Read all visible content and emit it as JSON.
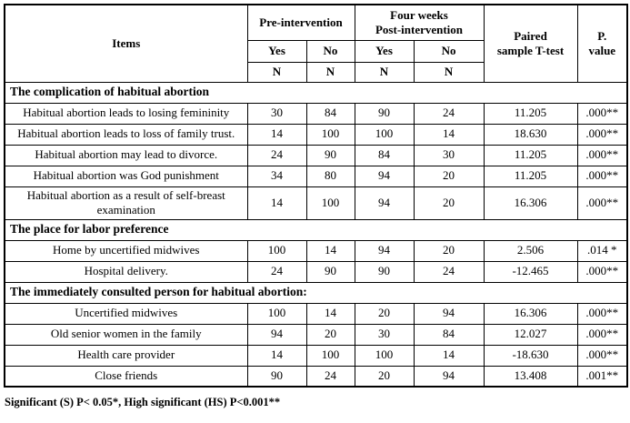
{
  "table": {
    "header": {
      "items": "Items",
      "pre_intervention": "Pre-intervention",
      "post_intervention": "Four weeks\nPost-intervention",
      "yes": "Yes",
      "no": "No",
      "n": "N",
      "paired_t_test": "Paired\nsample T-test",
      "p_value": "P.\nvalue"
    },
    "sections": [
      {
        "title": "The complication of habitual abortion",
        "rows": [
          {
            "item": "Habitual abortion leads to losing femininity",
            "pre_yes": "30",
            "pre_no": "84",
            "post_yes": "90",
            "post_no": "24",
            "t": "11.205",
            "p": ".000**"
          },
          {
            "item": "Habitual abortion leads to loss of family trust.",
            "pre_yes": "14",
            "pre_no": "100",
            "post_yes": "100",
            "post_no": "14",
            "t": "18.630",
            "p": ".000**"
          },
          {
            "item": "Habitual abortion may lead to divorce.",
            "pre_yes": "24",
            "pre_no": "90",
            "post_yes": "84",
            "post_no": "30",
            "t": "11.205",
            "p": ".000**"
          },
          {
            "item": "Habitual abortion was God punishment",
            "pre_yes": "34",
            "pre_no": "80",
            "post_yes": "94",
            "post_no": "20",
            "t": "11.205",
            "p": ".000**"
          },
          {
            "item": "Habitual abortion as a result of self-breast examination",
            "pre_yes": "14",
            "pre_no": "100",
            "post_yes": "94",
            "post_no": "20",
            "t": "16.306",
            "p": ".000**"
          }
        ]
      },
      {
        "title": "The place for labor preference",
        "rows": [
          {
            "item": "Home by uncertified midwives",
            "pre_yes": "100",
            "pre_no": "14",
            "post_yes": "94",
            "post_no": "20",
            "t": "2.506",
            "p": ".014 *"
          },
          {
            "item": "Hospital delivery.",
            "pre_yes": "24",
            "pre_no": "90",
            "post_yes": "90",
            "post_no": "24",
            "t": "-12.465",
            "p": ".000**"
          }
        ]
      },
      {
        "title": "The immediately consulted person for habitual abortion:",
        "rows": [
          {
            "item": "Uncertified midwives",
            "pre_yes": "100",
            "pre_no": "14",
            "post_yes": "20",
            "post_no": "94",
            "t": "16.306",
            "p": ".000**"
          },
          {
            "item": "Old senior women in the family",
            "pre_yes": "94",
            "pre_no": "20",
            "post_yes": "30",
            "post_no": "84",
            "t": "12.027",
            "p": ".000**"
          },
          {
            "item": "Health care provider",
            "pre_yes": "14",
            "pre_no": "100",
            "post_yes": "100",
            "post_no": "14",
            "t": "-18.630",
            "p": ".000**"
          },
          {
            "item": "Close friends",
            "pre_yes": "90",
            "pre_no": "24",
            "post_yes": "20",
            "post_no": "94",
            "t": "13.408",
            "p": ".001**"
          }
        ]
      }
    ],
    "footnote": "Significant (S) P< 0.05*, High significant (HS) P<0.001**"
  }
}
